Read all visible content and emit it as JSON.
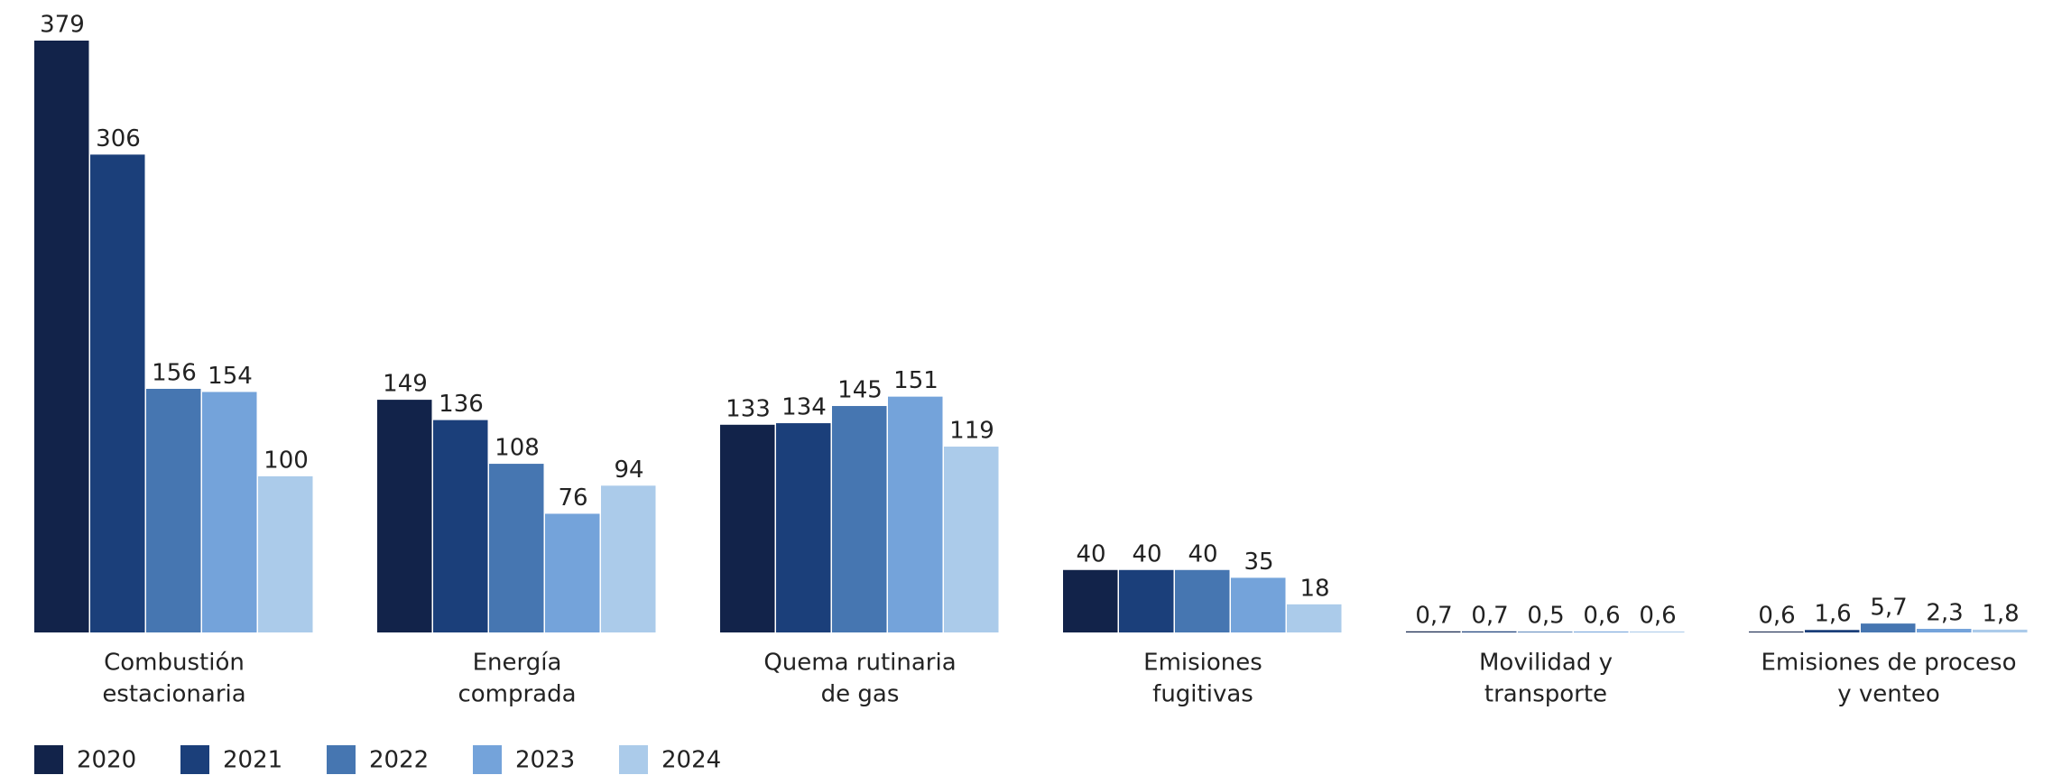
{
  "chart_data": {
    "type": "bar",
    "categories": [
      [
        "Combustión",
        "estacionaria"
      ],
      [
        "Energía",
        "comprada"
      ],
      [
        "Quema rutinaria",
        "de gas"
      ],
      [
        "Emisiones",
        "fugitivas"
      ],
      [
        "Movilidad y",
        "transporte"
      ],
      [
        "Emisiones de proceso",
        "y venteo"
      ]
    ],
    "series": [
      {
        "name": "2020",
        "color": "#12234a",
        "values": [
          379,
          149,
          133,
          40,
          0.7,
          0.6
        ],
        "value_labels": [
          "379",
          "149",
          "133",
          "40",
          "0,7",
          "0,6"
        ]
      },
      {
        "name": "2021",
        "color": "#1b3f7a",
        "values": [
          306,
          136,
          134,
          40,
          0.7,
          1.6
        ],
        "value_labels": [
          "306",
          "136",
          "134",
          "40",
          "0,7",
          "1,6"
        ]
      },
      {
        "name": "2022",
        "color": "#4676b1",
        "values": [
          156,
          108,
          145,
          40,
          0.5,
          5.7
        ],
        "value_labels": [
          "156",
          "108",
          "145",
          "40",
          "0,5",
          "5,7"
        ]
      },
      {
        "name": "2023",
        "color": "#74a3da",
        "values": [
          154,
          76,
          151,
          35,
          0.6,
          2.3
        ],
        "value_labels": [
          "154",
          "76",
          "151",
          "35",
          "0,6",
          "2,3"
        ]
      },
      {
        "name": "2024",
        "color": "#abcbea",
        "values": [
          100,
          94,
          119,
          18,
          0.6,
          1.8
        ],
        "value_labels": [
          "100",
          "94",
          "119",
          "18",
          "0,6",
          "1,8"
        ]
      }
    ],
    "legend": "bottom-left"
  }
}
